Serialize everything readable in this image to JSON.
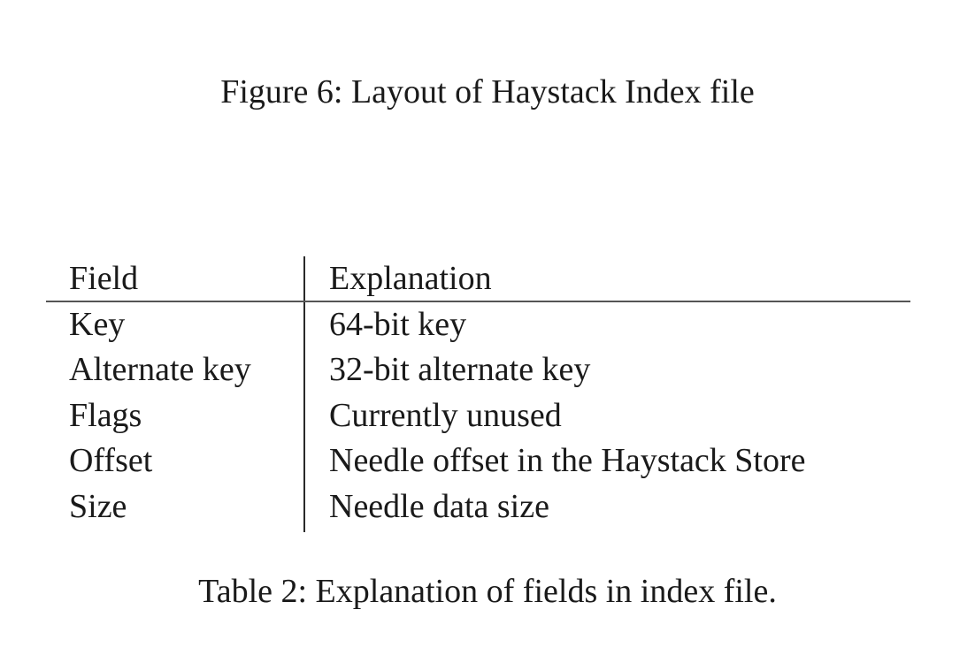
{
  "figure": {
    "caption": "Figure 6: Layout of Haystack Index file"
  },
  "table": {
    "headers": [
      "Field",
      "Explanation"
    ],
    "rows": [
      [
        "Key",
        "64-bit key"
      ],
      [
        "Alternate key",
        "32-bit alternate key"
      ],
      [
        "Flags",
        "Currently unused"
      ],
      [
        "Offset",
        "Needle offset in the Haystack Store"
      ],
      [
        "Size",
        "Needle data size"
      ]
    ],
    "caption": "Table 2: Explanation of fields in index file."
  }
}
